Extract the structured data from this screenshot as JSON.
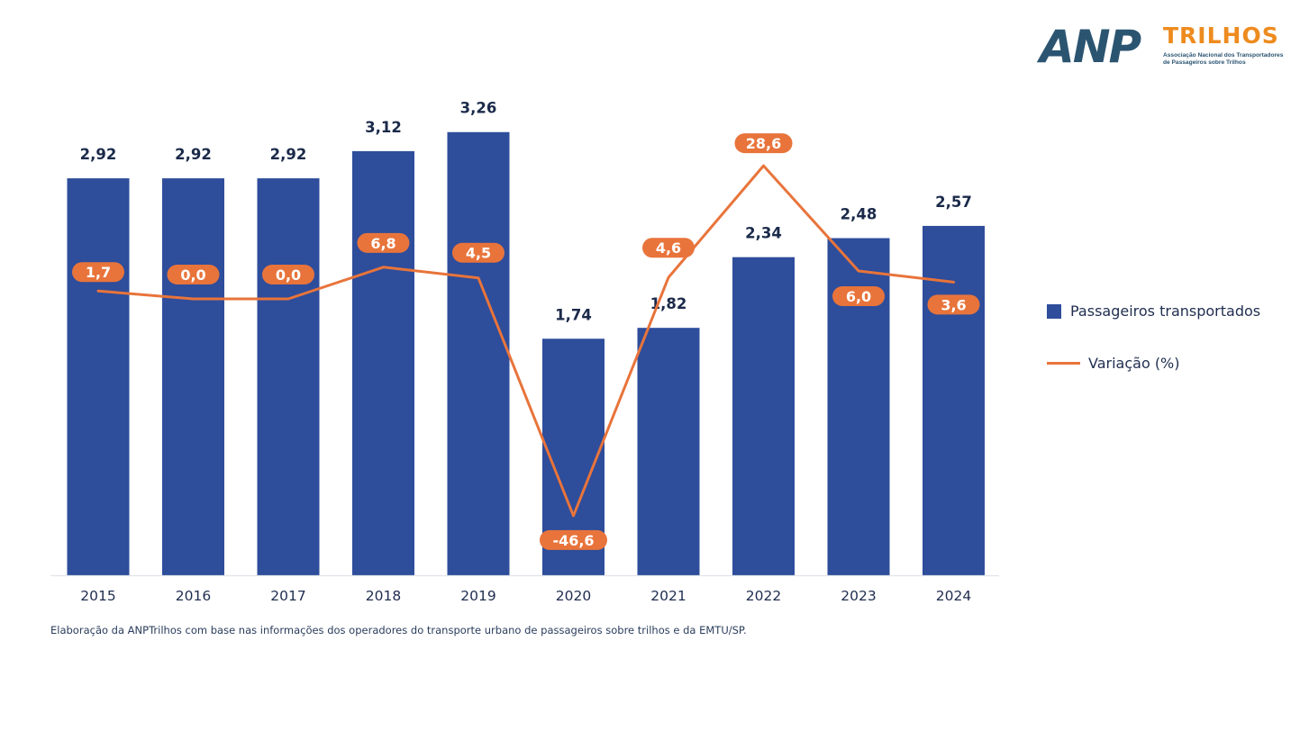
{
  "logo": {
    "anp": "ANP",
    "trilhos": "TRILHOS",
    "subtitle_line1": "Associação Nacional dos Transportadores",
    "subtitle_line2": "de Passageiros sobre Trilhos"
  },
  "colors": {
    "bar": "#2e4d9b",
    "line": "#e8743b",
    "bar_label": "#1b2a4a",
    "axis_text": "#1f2d4f"
  },
  "chart_data": {
    "type": "bar",
    "title": "",
    "xlabel": "",
    "ylabel": "",
    "categories": [
      "2015",
      "2016",
      "2017",
      "2018",
      "2019",
      "2020",
      "2021",
      "2022",
      "2023",
      "2024"
    ],
    "series": [
      {
        "name": "Passageiros transportados",
        "type": "bar",
        "values": [
          2.92,
          2.92,
          2.92,
          3.12,
          3.26,
          1.74,
          1.82,
          2.34,
          2.48,
          2.57
        ],
        "labels": [
          "2,92",
          "2,92",
          "2,92",
          "3,12",
          "3,26",
          "1,74",
          "1,82",
          "2,34",
          "2,48",
          "2,57"
        ]
      },
      {
        "name": "Variação (%)",
        "type": "line",
        "values": [
          1.7,
          0.0,
          0.0,
          6.8,
          4.5,
          -46.6,
          4.6,
          28.6,
          6.0,
          3.6
        ],
        "labels": [
          "1,7",
          "0,0",
          "0,0",
          "6,8",
          "4,5",
          "-46,6",
          "4,6",
          "28,6",
          "6,0",
          "3,6"
        ]
      }
    ],
    "grid": false,
    "legend_position": "right"
  },
  "legend": {
    "bar_label": "Passageiros transportados",
    "line_label": "Variação (%)"
  },
  "source": "Elaboração da ANPTrilhos com base nas informações dos operadores do transporte urbano de passageiros sobre trilhos e da EMTU/SP."
}
